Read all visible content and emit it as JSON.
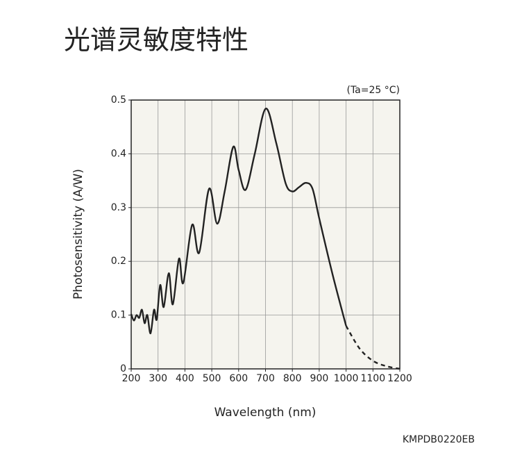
{
  "chart_data": {
    "type": "line",
    "title": "光谱灵敏度特性",
    "annotation": "(Ta=25 °C)",
    "x_label": "Wavelength (nm)",
    "y_label": "Photosensitivity (A/W)",
    "footer": "KMPDB0220EB",
    "x": [
      200,
      210,
      220,
      230,
      240,
      250,
      260,
      272,
      285,
      295,
      308,
      321,
      340,
      355,
      378,
      394,
      427,
      453,
      490,
      520,
      548,
      580,
      600,
      626,
      660,
      701,
      740,
      775,
      800,
      825,
      851,
      875,
      900,
      950,
      1000,
      1050,
      1100,
      1150,
      1200
    ],
    "series": [
      {
        "color": "#222222",
        "dashed": false,
        "values": [
          0.102,
          0.09,
          0.1,
          0.095,
          0.11,
          0.085,
          0.1,
          0.066,
          0.11,
          0.092,
          0.156,
          0.115,
          0.178,
          0.12,
          0.205,
          0.16,
          0.268,
          0.216,
          0.335,
          0.27,
          0.33,
          0.413,
          0.37,
          0.333,
          0.4,
          0.484,
          0.42,
          0.345,
          0.33,
          0.338,
          0.346,
          0.335,
          0.28,
          0.175,
          0.08,
          null,
          null,
          null,
          null
        ]
      },
      {
        "color": "#222222",
        "dashed": true,
        "values": [
          null,
          null,
          null,
          null,
          null,
          null,
          null,
          null,
          null,
          null,
          null,
          null,
          null,
          null,
          null,
          null,
          null,
          null,
          null,
          null,
          null,
          null,
          null,
          null,
          null,
          null,
          null,
          null,
          null,
          null,
          null,
          null,
          null,
          null,
          0.08,
          0.038,
          0.015,
          0.005,
          0
        ]
      }
    ],
    "xlim": [
      200,
      1200
    ],
    "xticks": [
      200,
      300,
      400,
      500,
      600,
      700,
      800,
      900,
      1000,
      1100,
      1200
    ],
    "ylim": [
      0,
      0.5
    ],
    "yticks": [
      0,
      0.1,
      0.2,
      0.3,
      0.4,
      0.5
    ],
    "grid": true,
    "plot_background": "#f5f4ee"
  }
}
